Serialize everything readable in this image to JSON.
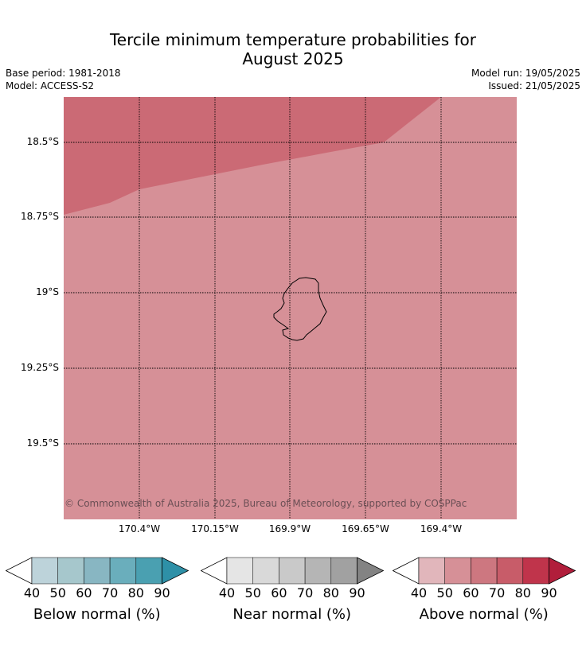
{
  "title_line1": "Tercile minimum temperature probabilities for",
  "title_line2": "August 2025",
  "meta_left": {
    "base_period": "Base period: 1981-2018",
    "model": "Model: ACCESS-S2"
  },
  "meta_right": {
    "model_run": "Model run: 19/05/2025",
    "issued": "Issued: 21/05/2025"
  },
  "copyright": "© Commonwealth of Australia 2025, Bureau of Meteorology, supported by COSPPac",
  "map": {
    "fill_colors": {
      "above_60_70": "#d69097",
      "above_70_80": "#cb6a75"
    },
    "lat_labels": [
      "18.5°S",
      "18.75°S",
      "19°S",
      "19.25°S",
      "19.5°S"
    ],
    "lon_labels": [
      "170.4°W",
      "170.15°W",
      "169.9°W",
      "169.65°W",
      "169.4°W"
    ]
  },
  "colorbars": [
    {
      "label": "Below normal (%)",
      "ticks": [
        "40",
        "50",
        "60",
        "70",
        "80",
        "90"
      ],
      "colors": [
        "#bdd3da",
        "#a6c7cc",
        "#88b6c2",
        "#6aaebc",
        "#4aa0b1",
        "#2e90a7"
      ]
    },
    {
      "label": "Near normal (%)",
      "ticks": [
        "40",
        "50",
        "60",
        "70",
        "80",
        "90"
      ],
      "colors": [
        "#e5e5e5",
        "#d9d9d9",
        "#c9c9c9",
        "#b5b5b5",
        "#a1a1a1",
        "#838383"
      ]
    },
    {
      "label": "Above normal (%)",
      "ticks": [
        "40",
        "50",
        "60",
        "70",
        "80",
        "90"
      ],
      "colors": [
        "#e1b6bb",
        "#d69097",
        "#cd7780",
        "#c85c69",
        "#c0344b",
        "#b11e3b"
      ]
    }
  ]
}
